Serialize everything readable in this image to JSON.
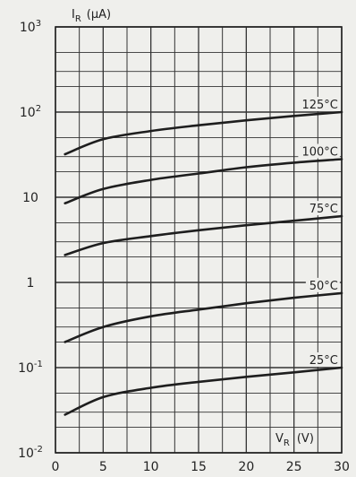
{
  "chart_data": {
    "type": "line",
    "xlabel": "V_R (V)",
    "ylabel": "I_R (µA)",
    "ylog": true,
    "xlim": [
      0,
      30
    ],
    "ylim": [
      0.01,
      1000
    ],
    "x_ticks": [
      0,
      5,
      10,
      15,
      20,
      25,
      30
    ],
    "y_ticks": [
      {
        "value": 0.01,
        "base": "10",
        "exp": "-2"
      },
      {
        "value": 0.1,
        "base": "10",
        "exp": "-1"
      },
      {
        "value": 1,
        "base": "1",
        "exp": ""
      },
      {
        "value": 10,
        "base": "10",
        "exp": ""
      },
      {
        "value": 100,
        "base": "10",
        "exp": "2"
      },
      {
        "value": 1000,
        "base": "10",
        "exp": "3"
      }
    ],
    "grid": true,
    "series": [
      {
        "name": "125°C",
        "x": [
          1,
          5,
          10,
          15,
          20,
          25,
          30
        ],
        "y": [
          32,
          48,
          60,
          70,
          80,
          90,
          100
        ]
      },
      {
        "name": "100°C",
        "x": [
          1,
          5,
          10,
          15,
          20,
          25,
          30
        ],
        "y": [
          8.5,
          12.5,
          16,
          19,
          22.5,
          25.5,
          28
        ]
      },
      {
        "name": "75°C",
        "x": [
          1,
          5,
          10,
          15,
          20,
          25,
          30
        ],
        "y": [
          2.1,
          2.9,
          3.5,
          4.1,
          4.7,
          5.3,
          6
        ]
      },
      {
        "name": "50°C",
        "x": [
          1,
          5,
          10,
          15,
          20,
          25,
          30
        ],
        "y": [
          0.2,
          0.3,
          0.4,
          0.48,
          0.57,
          0.66,
          0.75
        ]
      },
      {
        "name": "25°C",
        "x": [
          1,
          5,
          10,
          15,
          20,
          25,
          30
        ],
        "y": [
          0.028,
          0.045,
          0.058,
          0.068,
          0.078,
          0.088,
          0.1
        ]
      }
    ]
  }
}
